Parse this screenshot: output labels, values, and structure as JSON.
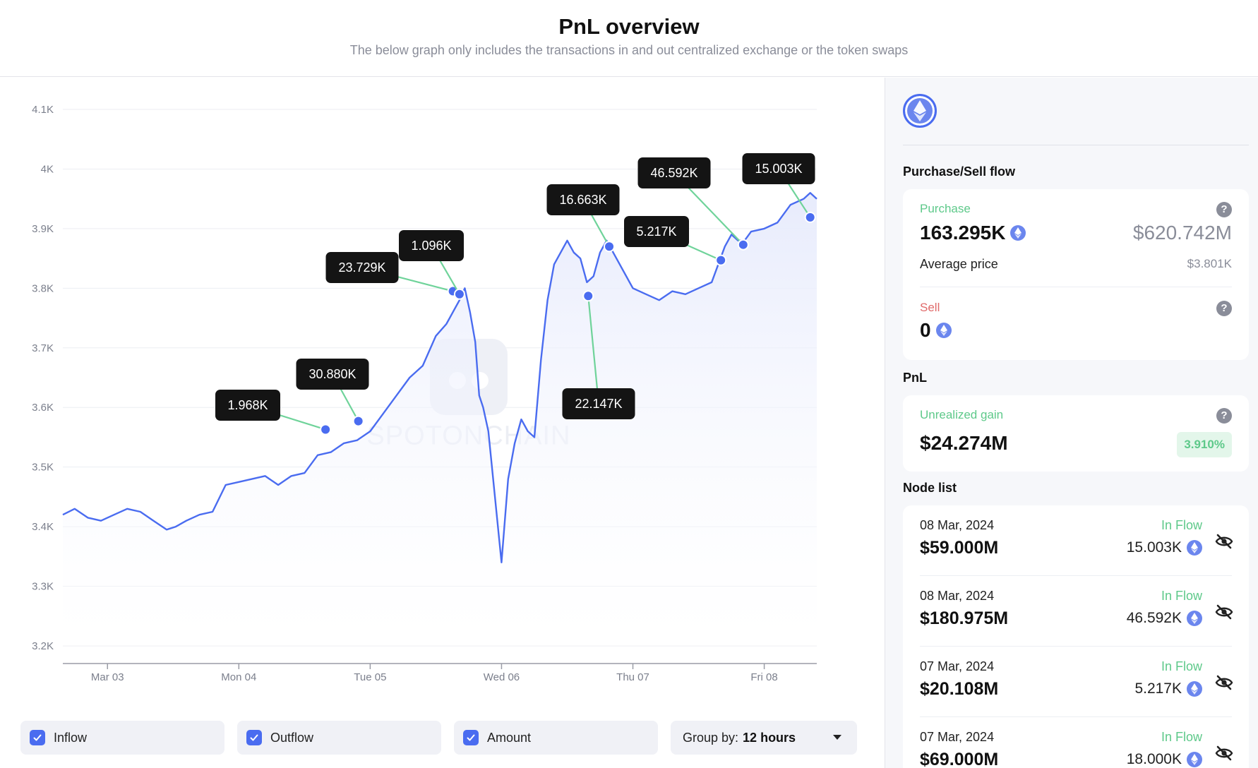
{
  "header": {
    "title": "PnL overview",
    "subtitle": "The below graph only includes the transactions in and out centralized exchange or the token swaps"
  },
  "chart_data": {
    "type": "area",
    "ylim": [
      3200,
      4100
    ],
    "y_ticks": [
      {
        "value": 4100,
        "label": "4.1K"
      },
      {
        "value": 4000,
        "label": "4K"
      },
      {
        "value": 3900,
        "label": "3.9K"
      },
      {
        "value": 3800,
        "label": "3.8K"
      },
      {
        "value": 3700,
        "label": "3.7K"
      },
      {
        "value": 3600,
        "label": "3.6K"
      },
      {
        "value": 3500,
        "label": "3.5K"
      },
      {
        "value": 3400,
        "label": "3.4K"
      },
      {
        "value": 3300,
        "label": "3.3K"
      },
      {
        "value": 3200,
        "label": "3.2K"
      }
    ],
    "xlim": [
      2.66,
      8.4
    ],
    "x_ticks": [
      {
        "value": 3,
        "label": "Mar 03"
      },
      {
        "value": 4,
        "label": "Mon 04"
      },
      {
        "value": 5,
        "label": "Tue 05"
      },
      {
        "value": 6,
        "label": "Wed 06"
      },
      {
        "value": 7,
        "label": "Thu 07"
      },
      {
        "value": 8,
        "label": "Fri 08"
      }
    ],
    "x": [
      2.66,
      2.75,
      2.85,
      2.95,
      3.05,
      3.15,
      3.25,
      3.35,
      3.45,
      3.52,
      3.6,
      3.7,
      3.8,
      3.9,
      4.0,
      4.1,
      4.2,
      4.3,
      4.4,
      4.5,
      4.6,
      4.7,
      4.8,
      4.9,
      5.0,
      5.1,
      5.2,
      5.3,
      5.4,
      5.5,
      5.58,
      5.63,
      5.68,
      5.72,
      5.76,
      5.8,
      5.83,
      5.86,
      5.9,
      5.95,
      6.0,
      6.05,
      6.1,
      6.15,
      6.2,
      6.25,
      6.3,
      6.35,
      6.4,
      6.45,
      6.5,
      6.55,
      6.6,
      6.65,
      6.7,
      6.75,
      6.8,
      6.9,
      7.0,
      7.1,
      7.2,
      7.3,
      7.4,
      7.5,
      7.6,
      7.7,
      7.75,
      7.8,
      7.85,
      7.9,
      8.0,
      8.1,
      8.2,
      8.3,
      8.35,
      8.4
    ],
    "series": [
      {
        "values": [
          3420,
          3430,
          3415,
          3410,
          3420,
          3430,
          3425,
          3410,
          3395,
          3400,
          3410,
          3420,
          3425,
          3470,
          3475,
          3480,
          3485,
          3470,
          3485,
          3490,
          3520,
          3525,
          3540,
          3545,
          3560,
          3590,
          3620,
          3650,
          3670,
          3720,
          3740,
          3760,
          3780,
          3800,
          3760,
          3710,
          3620,
          3600,
          3560,
          3450,
          3340,
          3480,
          3540,
          3580,
          3560,
          3550,
          3680,
          3780,
          3840,
          3860,
          3880,
          3860,
          3850,
          3810,
          3820,
          3860,
          3880,
          3840,
          3800,
          3790,
          3780,
          3795,
          3790,
          3800,
          3810,
          3870,
          3890,
          3880,
          3880,
          3895,
          3900,
          3910,
          3940,
          3950,
          3960,
          3950
        ]
      }
    ],
    "markers": [
      {
        "x": 4.66,
        "y": 3563,
        "label": "1.968K"
      },
      {
        "x": 4.91,
        "y": 3577,
        "label": "30.880K"
      },
      {
        "x": 5.63,
        "y": 3795,
        "label": "23.729K"
      },
      {
        "x": 5.68,
        "y": 3790,
        "label": "1.096K"
      },
      {
        "x": 6.66,
        "y": 3787,
        "label": "22.147K"
      },
      {
        "x": 6.82,
        "y": 3870,
        "label": "16.663K"
      },
      {
        "x": 7.67,
        "y": 3847,
        "label": "5.217K"
      },
      {
        "x": 7.84,
        "y": 3873,
        "label": "46.592K"
      },
      {
        "x": 8.35,
        "y": 3919,
        "label": "15.003K"
      }
    ],
    "watermark": "SPOTONCHAIN",
    "colors": {
      "line": "#4a6cf0",
      "connector": "#6fd39a",
      "area_top": "#e6eafc"
    }
  },
  "controls": {
    "inflow_label": "Inflow",
    "outflow_label": "Outflow",
    "amount_label": "Amount",
    "group_prefix": "Group by:",
    "group_value": "12 hours"
  },
  "side": {
    "coin_icon": "ethereum-icon",
    "purchase_sell_title": "Purchase/Sell flow",
    "purchase": {
      "label": "Purchase",
      "amount": "163.295K",
      "usd": "$620.742M",
      "avg_label": "Average price",
      "avg_value": "$3.801K"
    },
    "sell": {
      "label": "Sell",
      "amount": "0"
    },
    "pnl_title": "PnL",
    "pnl": {
      "label": "Unrealized gain",
      "value": "$24.274M",
      "pct": "3.910%"
    },
    "node_list_title": "Node list",
    "nodes": [
      {
        "date": "08 Mar, 2024",
        "usd": "$59.000M",
        "flow": "In Flow",
        "amount": "15.003K"
      },
      {
        "date": "08 Mar, 2024",
        "usd": "$180.975M",
        "flow": "In Flow",
        "amount": "46.592K"
      },
      {
        "date": "07 Mar, 2024",
        "usd": "$20.108M",
        "flow": "In Flow",
        "amount": "5.217K"
      },
      {
        "date": "07 Mar, 2024",
        "usd": "$69.000M",
        "flow": "In Flow",
        "amount": "18.000K"
      }
    ]
  }
}
